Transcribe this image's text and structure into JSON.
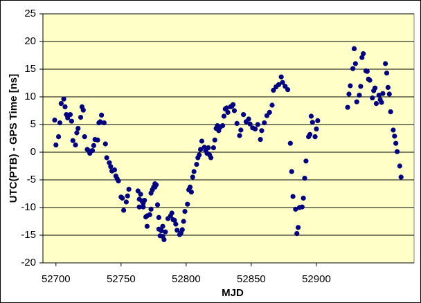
{
  "chart_data": {
    "type": "scatter",
    "xlabel": "MJD",
    "ylabel": "UTC(PTB) - GPS Time [ns]",
    "color": "#000080",
    "background": "#ffffc8",
    "grid": true,
    "xlim": [
      52690,
      52975
    ],
    "ylim": [
      -20,
      25
    ],
    "xticks": [
      52700,
      52750,
      52800,
      52850,
      52900
    ],
    "yticks": [
      -20,
      -15,
      -10,
      -5,
      0,
      5,
      10,
      15,
      20,
      25
    ],
    "x": [
      52699,
      52700,
      52702,
      52703,
      52704,
      52706,
      52707,
      52708,
      52709,
      52711,
      52712,
      52713,
      52715,
      52716,
      52717,
      52719,
      52720,
      52721,
      52722,
      52724,
      52725,
      52726,
      52728,
      52729,
      52730,
      52732,
      52733,
      52734,
      52735,
      52737,
      52738,
      52739,
      52741,
      52742,
      52743,
      52745,
      52746,
      52747,
      52748,
      52750,
      52751,
      52752,
      52754,
      52755,
      52756,
      52763,
      52764,
      52764,
      52765,
      52766,
      52767,
      52767,
      52768,
      52769,
      52770,
      52770,
      52772,
      52773,
      52773,
      52774,
      52775,
      52776,
      52776,
      52777,
      52778,
      52779,
      52779,
      52780,
      52781,
      52782,
      52782,
      52783,
      52784,
      52786,
      52788,
      52789,
      52790,
      52791,
      52792,
      52793,
      52795,
      52796,
      52797,
      52798,
      52799,
      52801,
      52802,
      52803,
      52804,
      52805,
      52806,
      52808,
      52809,
      52810,
      52811,
      52812,
      52814,
      52815,
      52816,
      52817,
      52818,
      52819,
      52821,
      52822,
      52823,
      52824,
      52825,
      52826,
      52828,
      52829,
      52830,
      52831,
      52832,
      52834,
      52835,
      52836,
      52837,
      52839,
      52841,
      52842,
      52844,
      52846,
      52848,
      52849,
      52851,
      52853,
      52855,
      52857,
      52858,
      52860,
      52862,
      52864,
      52866,
      52867,
      52869,
      52871,
      52873,
      52874,
      52876,
      52878,
      52880,
      52881,
      52882,
      52884,
      52885,
      52886,
      52887,
      52889,
      52890,
      52891,
      52892,
      52894,
      52895,
      52896,
      52897,
      52899,
      52900,
      52901,
      52924,
      52925,
      52926,
      52928,
      52929,
      52930,
      52931,
      52933,
      52934,
      52935,
      52936,
      52938,
      52939,
      52940,
      52941,
      52943,
      52944,
      52945,
      52946,
      52948,
      52949,
      52950,
      52951,
      52953,
      52954,
      52955,
      52956,
      52957,
      52959,
      52960,
      52961,
      52962,
      52964,
      52965
    ],
    "values": [
      5.8,
      1.3,
      2.8,
      5.3,
      8.8,
      9.6,
      8.2,
      6.8,
      6.2,
      6.8,
      5.6,
      2.1,
      1.3,
      3.5,
      4.3,
      6.3,
      8.2,
      7.6,
      2.8,
      0.5,
      0.3,
      -0.2,
      0.3,
      1.2,
      2.3,
      2.2,
      5.3,
      5.5,
      6.7,
      5.3,
      1.5,
      -1.0,
      -1.9,
      -2.6,
      -3.4,
      -3.2,
      -4.3,
      -4.8,
      -5.2,
      -8.1,
      -8.3,
      -10.5,
      -9.0,
      -7.9,
      -6.7,
      -7.0,
      -8.5,
      -9.9,
      -7.6,
      -8.8,
      -9.9,
      -9.2,
      -8.7,
      -11.7,
      -13.4,
      -11.5,
      -11.3,
      -10.3,
      -7.4,
      -6.8,
      -6.3,
      -5.7,
      -6.3,
      -5.9,
      -9.5,
      -11.8,
      -13.9,
      -15.1,
      -14.2,
      -15.2,
      -13.4,
      -15.8,
      -14.4,
      -12.0,
      -11.5,
      -11.0,
      -12.2,
      -12.3,
      -13.0,
      -14.1,
      -14.9,
      -14.6,
      -14.0,
      -12.5,
      -10.7,
      -9.4,
      -6.8,
      -6.3,
      -7.2,
      -4.5,
      -3.5,
      -2.2,
      -1.0,
      -0.5,
      0.5,
      2.0,
      0.9,
      0.3,
      -0.2,
      0.8,
      -0.5,
      -1.0,
      0.8,
      2.2,
      4.3,
      4.8,
      3.9,
      4.5,
      4.8,
      6.5,
      7.8,
      8.0,
      7.2,
      8.2,
      8.3,
      8.6,
      7.5,
      5.2,
      3.0,
      4.0,
      6.8,
      5.5,
      6.0,
      5.1,
      4.4,
      4.2,
      5.0,
      2.3,
      3.9,
      5.3,
      6.6,
      7.2,
      8.5,
      11.2,
      11.8,
      12.2,
      13.6,
      12.6,
      11.9,
      11.3,
      1.6,
      -3.5,
      -8.0,
      -10.3,
      -14.7,
      -13.6,
      -10.0,
      -9.9,
      -8.3,
      -4.7,
      -1.6,
      2.8,
      3.2,
      6.5,
      5.4,
      2.8,
      4.2,
      5.7,
      8.1,
      10.5,
      12.0,
      15.1,
      18.7,
      16.0,
      9.1,
      10.3,
      11.9,
      17.1,
      17.8,
      14.7,
      14.6,
      13.2,
      13.0,
      9.8,
      11.1,
      11.6,
      8.8,
      10.3,
      9.5,
      9.0,
      10.6,
      16.0,
      14.3,
      11.7,
      10.5,
      7.3,
      4.0,
      2.9,
      1.6,
      0.1,
      -2.5,
      -4.5
    ]
  }
}
